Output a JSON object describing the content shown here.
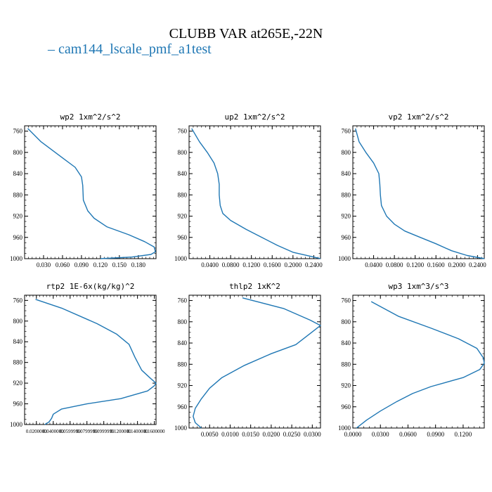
{
  "figure": {
    "title": "CLUBB VAR at265E,-22N",
    "legend_entry": "cam144_lscale_pmf_a1test",
    "line_color": "#1f77b4"
  },
  "chart_data": [
    {
      "type": "line",
      "title": "wp2   1xm^2/s^2",
      "xlim": [
        0.0,
        0.208
      ],
      "ylim": [
        1000,
        750
      ],
      "xticks": [
        0.03,
        0.06,
        0.09,
        0.12,
        0.15,
        0.18
      ],
      "xtick_labels": [
        "0.030",
        "0.060",
        "0.090",
        "0.120",
        "0.150",
        "0.180"
      ],
      "yticks": [
        760,
        800,
        840,
        880,
        920,
        960,
        1000
      ],
      "legend_position": "top-left",
      "series": [
        {
          "name": "cam144_lscale_pmf_a1test",
          "x": [
            0.005,
            0.026,
            0.062,
            0.08,
            0.09,
            0.092,
            0.093,
            0.1,
            0.11,
            0.13,
            0.165,
            0.19,
            0.205,
            0.207,
            0.2,
            0.17,
            0.12
          ],
          "y": [
            755,
            780,
            812,
            828,
            846,
            862,
            890,
            910,
            924,
            940,
            955,
            968,
            978,
            987,
            992,
            997,
            1000
          ]
        }
      ]
    },
    {
      "type": "line",
      "title": "up2   1xm^2/s^2",
      "xlim": [
        0.0,
        0.253
      ],
      "ylim": [
        1000,
        750
      ],
      "xticks": [
        0.04,
        0.08,
        0.12,
        0.16,
        0.2,
        0.24
      ],
      "xtick_labels": [
        "0.0400",
        "0.0800",
        "0.1200",
        "0.1600",
        "0.2000",
        "0.2400"
      ],
      "yticks": [
        760,
        800,
        840,
        880,
        920,
        960,
        1000
      ],
      "legend_position": "top-left",
      "series": [
        {
          "name": "cam144_lscale_pmf_a1test",
          "x": [
            0.005,
            0.02,
            0.035,
            0.048,
            0.055,
            0.058,
            0.058,
            0.06,
            0.065,
            0.08,
            0.11,
            0.14,
            0.17,
            0.2,
            0.24,
            0.253
          ],
          "y": [
            755,
            780,
            800,
            820,
            840,
            860,
            880,
            900,
            915,
            928,
            945,
            960,
            975,
            988,
            997,
            1000
          ]
        }
      ]
    },
    {
      "type": "line",
      "title": "vp2   1xm^2/s^2",
      "xlim": [
        0.0,
        0.253
      ],
      "ylim": [
        1000,
        750
      ],
      "xticks": [
        0.04,
        0.08,
        0.12,
        0.16,
        0.2,
        0.24
      ],
      "xtick_labels": [
        "0.0400",
        "0.0800",
        "0.1200",
        "0.1600",
        "0.2000",
        "0.2400"
      ],
      "yticks": [
        760,
        800,
        840,
        880,
        920,
        960,
        1000
      ],
      "legend_position": "top-left",
      "series": [
        {
          "name": "cam144_lscale_pmf_a1test",
          "x": [
            0.005,
            0.012,
            0.025,
            0.04,
            0.05,
            0.052,
            0.053,
            0.055,
            0.065,
            0.08,
            0.1,
            0.13,
            0.16,
            0.19,
            0.22,
            0.253
          ],
          "y": [
            755,
            780,
            800,
            820,
            840,
            860,
            880,
            900,
            920,
            935,
            948,
            960,
            972,
            985,
            994,
            1000
          ]
        }
      ]
    },
    {
      "type": "line",
      "title": "rtp2   1E-6x(kg/kg)^2",
      "xlim": [
        0.006,
        0.162
      ],
      "ylim": [
        1000,
        750
      ],
      "xticks": [
        0.02,
        0.04,
        0.06,
        0.08,
        0.1,
        0.12,
        0.14,
        0.16
      ],
      "xtick_labels": [
        "0.0200000",
        "0.0400000",
        "0.0599999",
        "0.0799999",
        "0.0999999",
        "0.1200000",
        "0.1400000",
        "0.1600000"
      ],
      "yticks": [
        760,
        800,
        840,
        880,
        920,
        960,
        1000
      ],
      "legend_position": "top-left",
      "series": [
        {
          "name": "cam144_lscale_pmf_a1test",
          "x": [
            0.019,
            0.05,
            0.092,
            0.115,
            0.13,
            0.137,
            0.145,
            0.155,
            0.162,
            0.16,
            0.152,
            0.12,
            0.08,
            0.05,
            0.04,
            0.038,
            0.035,
            0.03
          ],
          "y": [
            758,
            775,
            805,
            825,
            845,
            870,
            895,
            910,
            920,
            925,
            935,
            950,
            960,
            970,
            980,
            988,
            995,
            1000
          ]
        }
      ]
    },
    {
      "type": "line",
      "title": "thlp2   1xK^2",
      "xlim": [
        0.0,
        0.032
      ],
      "ylim": [
        1000,
        750
      ],
      "xticks": [
        0.005,
        0.01,
        0.015,
        0.02,
        0.025,
        0.03
      ],
      "xtick_labels": [
        "0.0050",
        "0.0100",
        "0.0150",
        "0.0200",
        "0.0250",
        "0.0300"
      ],
      "yticks": [
        760,
        800,
        840,
        880,
        920,
        960,
        1000
      ],
      "legend_position": "top-left",
      "series": [
        {
          "name": "cam144_lscale_pmf_a1test",
          "x": [
            0.013,
            0.023,
            0.0295,
            0.032,
            0.0295,
            0.026,
            0.02,
            0.0135,
            0.008,
            0.005,
            0.003,
            0.0015,
            0.001,
            0.0015,
            0.003
          ],
          "y": [
            755,
            775,
            797,
            807,
            822,
            843,
            860,
            882,
            905,
            925,
            945,
            963,
            978,
            990,
            1000
          ]
        }
      ]
    },
    {
      "type": "line",
      "title": "wp3   1xm^3/s^3",
      "xlim": [
        0.0,
        0.143
      ],
      "ylim": [
        1000,
        750
      ],
      "xticks": [
        0.0,
        0.03,
        0.06,
        0.09,
        0.12
      ],
      "xtick_labels": [
        "0.0000",
        "0.0300",
        "0.0600",
        "0.0900",
        "0.1200"
      ],
      "yticks": [
        760,
        800,
        840,
        880,
        920,
        960,
        1000
      ],
      "legend_position": "top-left",
      "series": [
        {
          "name": "cam144_lscale_pmf_a1test",
          "x": [
            0.02,
            0.05,
            0.085,
            0.115,
            0.135,
            0.142,
            0.143,
            0.138,
            0.12,
            0.085,
            0.065,
            0.048,
            0.03,
            0.015,
            0.004
          ],
          "y": [
            762,
            790,
            812,
            832,
            850,
            868,
            878,
            890,
            905,
            922,
            935,
            950,
            968,
            985,
            1000
          ]
        }
      ]
    }
  ]
}
